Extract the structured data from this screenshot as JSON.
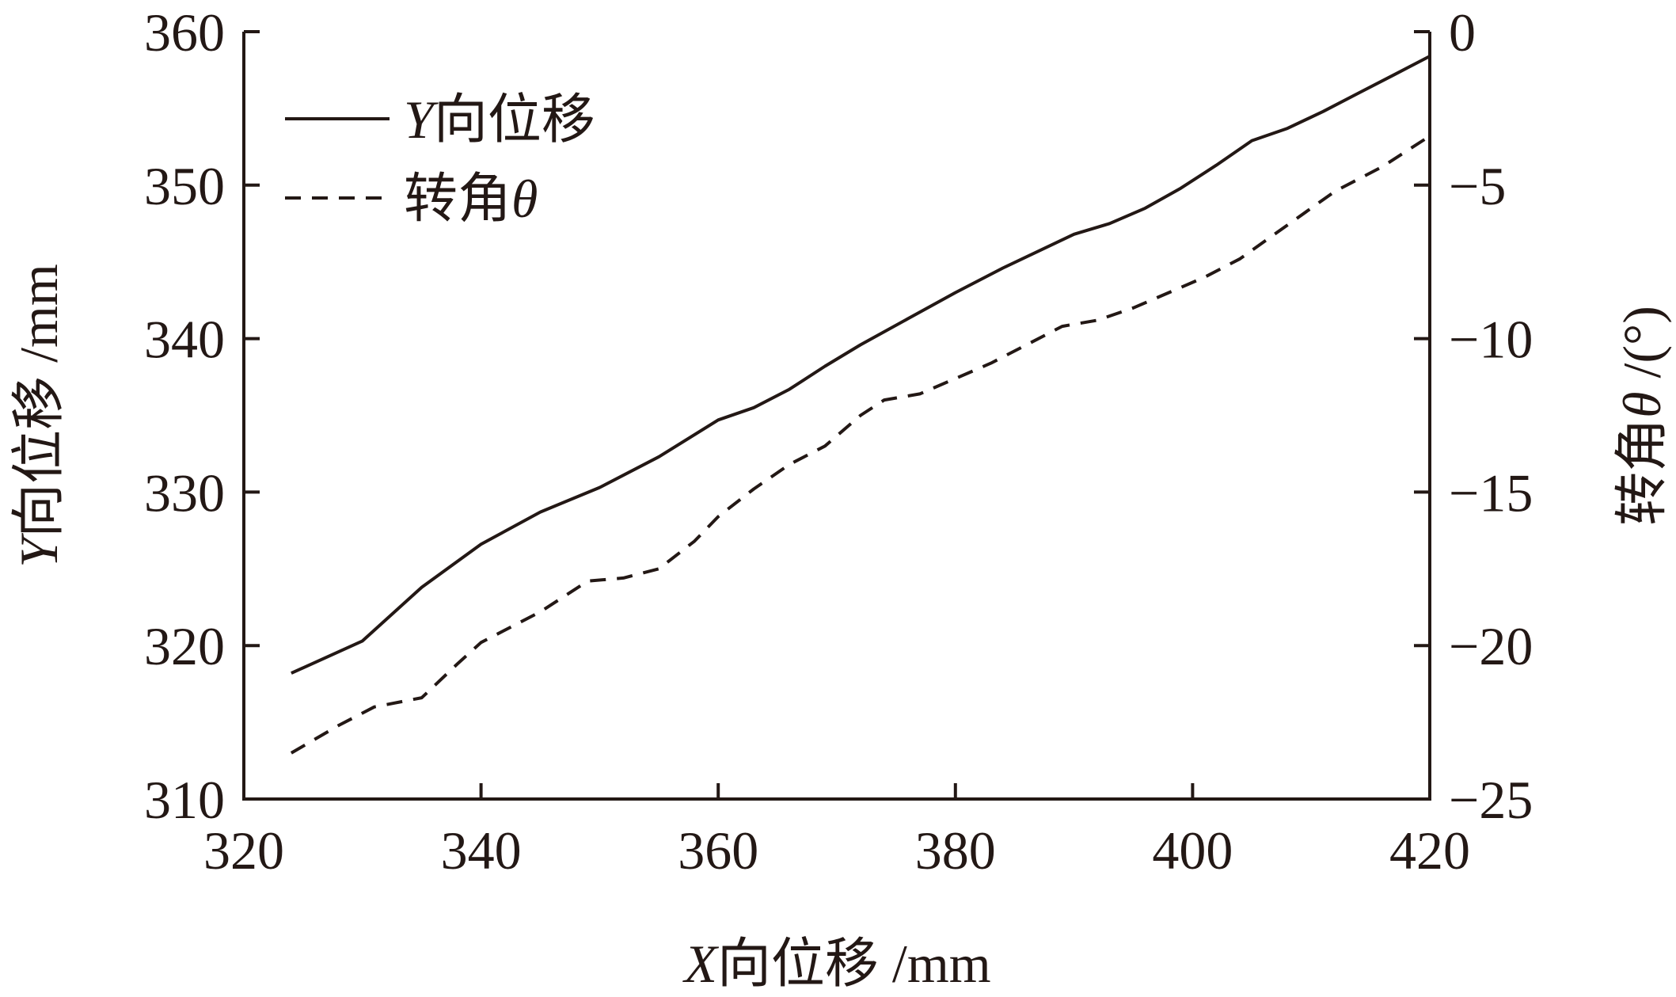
{
  "chart_data": {
    "type": "line",
    "xlabel_var": "X",
    "xlabel_rest": "向位移 /mm",
    "ylabel_var": "Y",
    "ylabel_rest": "向位移 /mm",
    "y2label_prefix": "转角",
    "y2label_var": "θ",
    "y2label_suffix": " /(°)",
    "xlim": [
      320,
      420
    ],
    "ylim": [
      310,
      360
    ],
    "y2lim": [
      -25,
      0
    ],
    "x_ticks": [
      "320",
      "340",
      "360",
      "380",
      "400",
      "420"
    ],
    "y_ticks": [
      "310",
      "320",
      "330",
      "340",
      "350",
      "360"
    ],
    "y2_ticks": [
      "−25",
      "−20",
      "−15",
      "−10",
      "−5",
      "0"
    ],
    "grid": false,
    "legend_position": "top-left",
    "series": [
      {
        "name_var": "Y",
        "name_rest": "向位移",
        "axis": "left",
        "style": "solid",
        "x": [
          324,
          330,
          335,
          340,
          345,
          350,
          355,
          360,
          363,
          366,
          369,
          372,
          376,
          380,
          384,
          390,
          393,
          396,
          399,
          402,
          405,
          408,
          411,
          414,
          417,
          420
        ],
        "y": [
          318.2,
          320.3,
          323.8,
          326.6,
          328.7,
          330.3,
          332.3,
          334.7,
          335.5,
          336.7,
          338.2,
          339.6,
          341.3,
          343.0,
          344.6,
          346.8,
          347.5,
          348.5,
          349.8,
          351.3,
          352.9,
          353.7,
          354.8,
          356.0,
          357.2,
          358.4
        ]
      },
      {
        "name_prefix": "转角",
        "name_var": "θ",
        "axis": "right",
        "style": "dashed",
        "x": [
          324,
          328,
          331,
          335,
          338,
          340,
          345,
          349,
          352,
          355,
          358,
          360,
          363,
          366,
          369,
          372,
          374,
          377,
          380,
          383,
          386,
          389,
          392,
          395,
          398,
          401,
          404,
          408,
          412,
          416,
          420
        ],
        "y": [
          -23.5,
          -22.6,
          -22.0,
          -21.7,
          -20.6,
          -19.9,
          -18.9,
          -17.9,
          -17.8,
          -17.5,
          -16.6,
          -15.8,
          -14.9,
          -14.1,
          -13.5,
          -12.5,
          -12.0,
          -11.8,
          -11.3,
          -10.8,
          -10.2,
          -9.6,
          -9.4,
          -9.0,
          -8.5,
          -8.0,
          -7.4,
          -6.3,
          -5.2,
          -4.4,
          -3.4
        ]
      }
    ]
  }
}
